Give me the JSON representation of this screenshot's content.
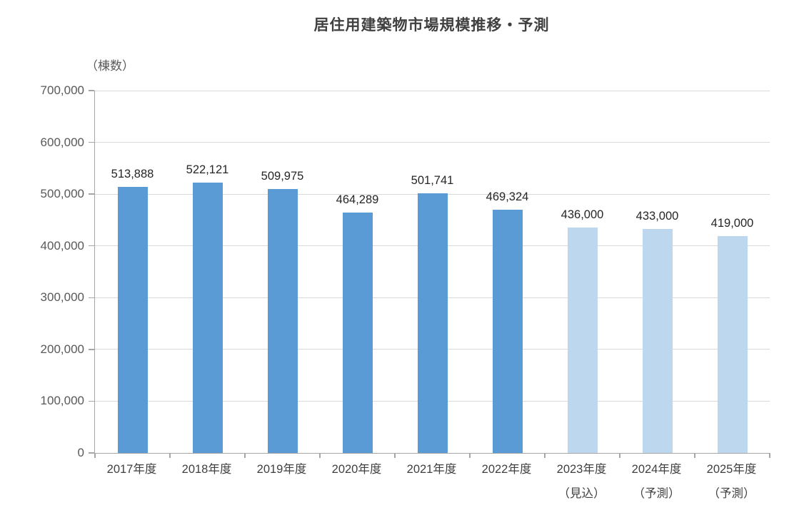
{
  "chart_data": {
    "type": "bar",
    "title": "居住用建築物市場規模推移・予測",
    "unit_label": "（棟数）",
    "xlabel": "",
    "ylabel": "棟数",
    "categories": [
      {
        "label": "2017年度",
        "sublabel": ""
      },
      {
        "label": "2018年度",
        "sublabel": ""
      },
      {
        "label": "2019年度",
        "sublabel": ""
      },
      {
        "label": "2020年度",
        "sublabel": ""
      },
      {
        "label": "2021年度",
        "sublabel": ""
      },
      {
        "label": "2022年度",
        "sublabel": ""
      },
      {
        "label": "2023年度",
        "sublabel": "（見込）"
      },
      {
        "label": "2024年度",
        "sublabel": "（予測）"
      },
      {
        "label": "2025年度",
        "sublabel": "（予測）"
      }
    ],
    "values": [
      513888,
      522121,
      509975,
      464289,
      501741,
      469324,
      436000,
      433000,
      419000
    ],
    "data_labels": [
      "513,888",
      "522,121",
      "509,975",
      "464,289",
      "501,741",
      "469,324",
      "436,000",
      "433,000",
      "419,000"
    ],
    "bar_styles": [
      "actual",
      "actual",
      "actual",
      "actual",
      "actual",
      "actual",
      "forecast",
      "forecast",
      "forecast"
    ],
    "ylim": [
      0,
      700000
    ],
    "ytick_step": 100000,
    "ytick_labels": [
      "0",
      "100,000",
      "200,000",
      "300,000",
      "400,000",
      "500,000",
      "600,000",
      "700,000"
    ],
    "grid": true,
    "legend_position": "none",
    "colors": {
      "actual_bar": "#5b9bd5",
      "forecast_bar": "#bdd7ee",
      "gridline": "#d9d9d9",
      "axis_line": "#a6a6a6",
      "title_text": "#404040",
      "ytick_text": "#595959",
      "xtick_text": "#404040",
      "data_label_text": "#262626",
      "background": "#ffffff"
    }
  }
}
